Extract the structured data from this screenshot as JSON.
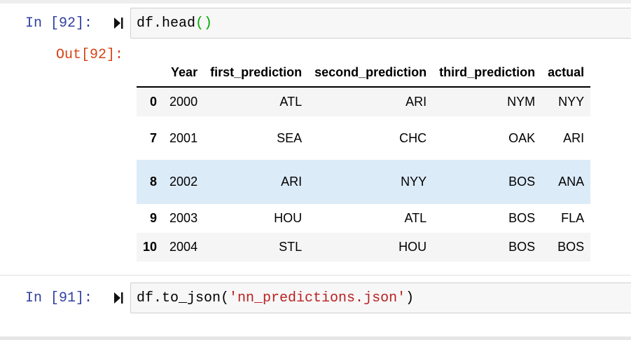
{
  "cells": {
    "in1": {
      "prompt": "In [92]:",
      "code_fn": "df.head",
      "code_open": "(",
      "code_close": ")"
    },
    "out1": {
      "prompt": "Out[92]:"
    },
    "in2": {
      "prompt": "In [91]:",
      "code_fn": "df.to_json(",
      "code_str": "'nn_predictions.json'",
      "code_close": ")"
    }
  },
  "table": {
    "columns": [
      "",
      "Year",
      "first_prediction",
      "second_prediction",
      "third_prediction",
      "actual"
    ],
    "rows": [
      {
        "index": "0",
        "year": "2000",
        "first": "ATL",
        "second": "ARI",
        "third": "NYM",
        "actual": "NYY"
      },
      {
        "index": "7",
        "year": "2001",
        "first": "SEA",
        "second": "CHC",
        "third": "OAK",
        "actual": "ARI"
      },
      {
        "index": "8",
        "year": "2002",
        "first": "ARI",
        "second": "NYY",
        "third": "BOS",
        "actual": "ANA"
      },
      {
        "index": "9",
        "year": "2003",
        "first": "HOU",
        "second": "ATL",
        "third": "BOS",
        "actual": "FLA"
      },
      {
        "index": "10",
        "year": "2004",
        "first": "STL",
        "second": "HOU",
        "third": "BOS",
        "actual": "BOS"
      }
    ]
  },
  "icons": {
    "run": "run-cell-icon"
  },
  "colors": {
    "in_prompt": "#303f9f",
    "out_prompt": "#d84315",
    "row_highlight": "#dcebf8",
    "row_striped": "#f5f5f5"
  }
}
